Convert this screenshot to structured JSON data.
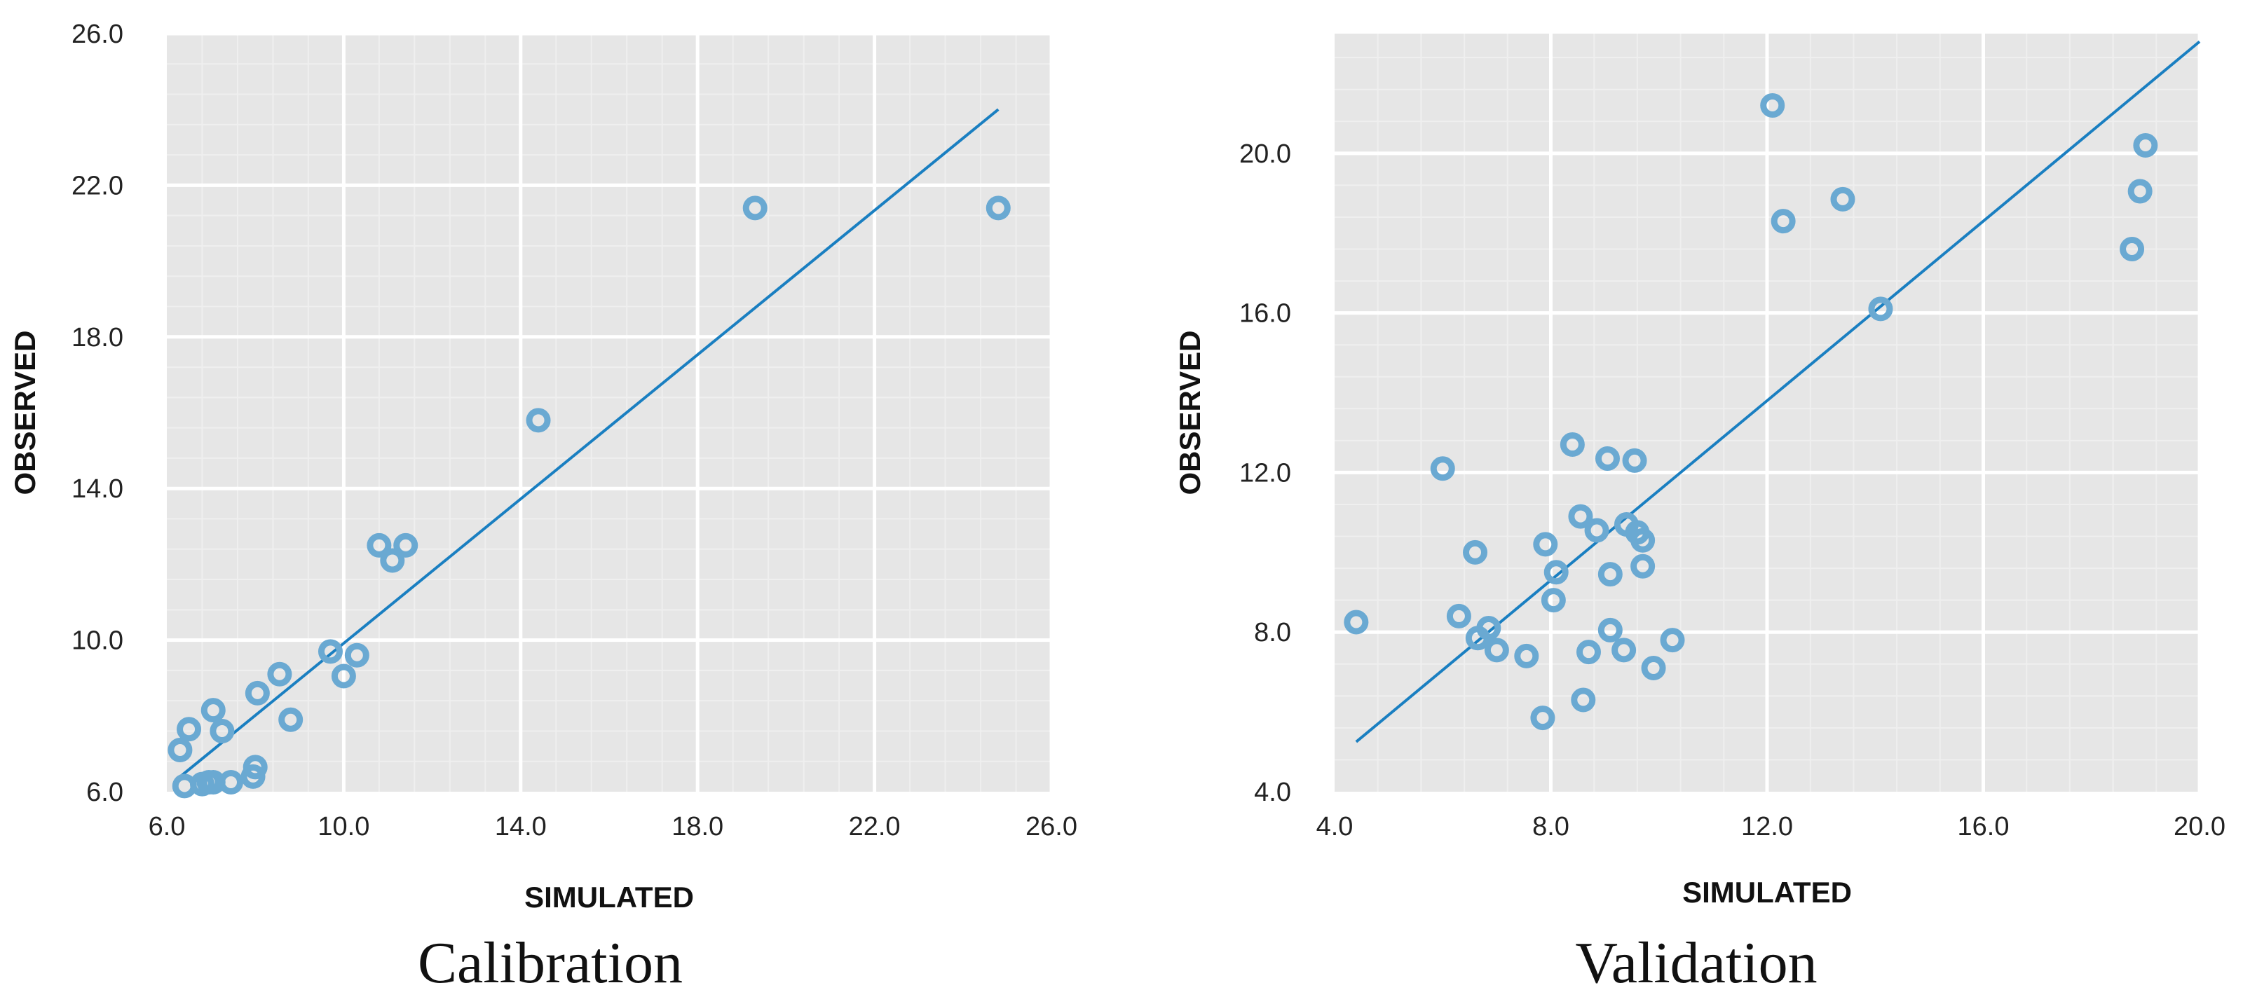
{
  "colors": {
    "plot_bg": "#e6e6e6",
    "grid_major": "#ffffff",
    "grid_minor": "#efefef",
    "marker": "#6aa9d2",
    "fit_line": "#1a7fc1"
  },
  "chart_data": [
    {
      "type": "scatter",
      "caption": "Calibration",
      "xlabel": "SIMULATED",
      "ylabel": "OBSERVED",
      "xlim": [
        6.0,
        26.0
      ],
      "ylim": [
        6.0,
        26.0
      ],
      "xticks": [
        "6.0",
        "10.0",
        "14.0",
        "18.0",
        "22.0",
        "26.0"
      ],
      "yticks": [
        "6.0",
        "10.0",
        "14.0",
        "18.0",
        "22.0",
        "26.0"
      ],
      "trendline": {
        "x": [
          6.2,
          24.8
        ],
        "y": [
          6.3,
          24.0
        ]
      },
      "points": [
        {
          "x": 6.3,
          "y": 7.1
        },
        {
          "x": 6.5,
          "y": 7.65
        },
        {
          "x": 6.4,
          "y": 6.15
        },
        {
          "x": 6.8,
          "y": 6.2
        },
        {
          "x": 6.95,
          "y": 6.25
        },
        {
          "x": 7.05,
          "y": 6.25
        },
        {
          "x": 7.45,
          "y": 6.25
        },
        {
          "x": 7.05,
          "y": 8.15
        },
        {
          "x": 7.25,
          "y": 7.6
        },
        {
          "x": 7.95,
          "y": 6.4
        },
        {
          "x": 8.0,
          "y": 6.65
        },
        {
          "x": 8.05,
          "y": 8.6
        },
        {
          "x": 8.55,
          "y": 9.1
        },
        {
          "x": 8.8,
          "y": 7.9
        },
        {
          "x": 9.7,
          "y": 9.7
        },
        {
          "x": 10.0,
          "y": 9.05
        },
        {
          "x": 10.3,
          "y": 9.6
        },
        {
          "x": 10.8,
          "y": 12.5
        },
        {
          "x": 11.1,
          "y": 12.1
        },
        {
          "x": 11.4,
          "y": 12.5
        },
        {
          "x": 14.4,
          "y": 15.8
        },
        {
          "x": 19.3,
          "y": 21.4
        },
        {
          "x": 24.8,
          "y": 21.4
        }
      ]
    },
    {
      "type": "scatter",
      "caption": "Validation",
      "xlabel": "SIMULATED",
      "ylabel": "OBSERVED",
      "xlim": [
        4.0,
        20.0
      ],
      "ylim": [
        4.0,
        23.0
      ],
      "xticks": [
        "4.0",
        "8.0",
        "12.0",
        "16.0",
        "20.0"
      ],
      "yticks": [
        "4.0",
        "8.0",
        "12.0",
        "16.0",
        "20.0"
      ],
      "trendline": {
        "x": [
          4.4,
          20.0
        ],
        "y": [
          5.25,
          22.8
        ]
      },
      "points": [
        {
          "x": 4.4,
          "y": 8.25
        },
        {
          "x": 6.0,
          "y": 12.1
        },
        {
          "x": 6.3,
          "y": 8.4
        },
        {
          "x": 6.6,
          "y": 10.0
        },
        {
          "x": 6.65,
          "y": 7.85
        },
        {
          "x": 6.85,
          "y": 8.1
        },
        {
          "x": 7.0,
          "y": 7.55
        },
        {
          "x": 7.55,
          "y": 7.4
        },
        {
          "x": 7.85,
          "y": 5.85
        },
        {
          "x": 7.9,
          "y": 10.2
        },
        {
          "x": 8.05,
          "y": 8.8
        },
        {
          "x": 8.1,
          "y": 9.5
        },
        {
          "x": 8.4,
          "y": 12.7
        },
        {
          "x": 8.55,
          "y": 10.9
        },
        {
          "x": 8.6,
          "y": 6.3
        },
        {
          "x": 8.7,
          "y": 7.5
        },
        {
          "x": 8.85,
          "y": 10.55
        },
        {
          "x": 9.05,
          "y": 12.35
        },
        {
          "x": 9.1,
          "y": 9.45
        },
        {
          "x": 9.1,
          "y": 8.05
        },
        {
          "x": 9.35,
          "y": 7.55
        },
        {
          "x": 9.4,
          "y": 10.7
        },
        {
          "x": 9.55,
          "y": 12.3
        },
        {
          "x": 9.6,
          "y": 10.5
        },
        {
          "x": 9.7,
          "y": 10.3
        },
        {
          "x": 9.7,
          "y": 9.65
        },
        {
          "x": 9.9,
          "y": 7.1
        },
        {
          "x": 10.25,
          "y": 7.8
        },
        {
          "x": 12.1,
          "y": 21.2
        },
        {
          "x": 12.3,
          "y": 18.3
        },
        {
          "x": 13.4,
          "y": 18.85
        },
        {
          "x": 14.1,
          "y": 16.1
        },
        {
          "x": 18.75,
          "y": 17.6
        },
        {
          "x": 18.9,
          "y": 19.05
        },
        {
          "x": 19.0,
          "y": 20.2
        }
      ]
    }
  ]
}
